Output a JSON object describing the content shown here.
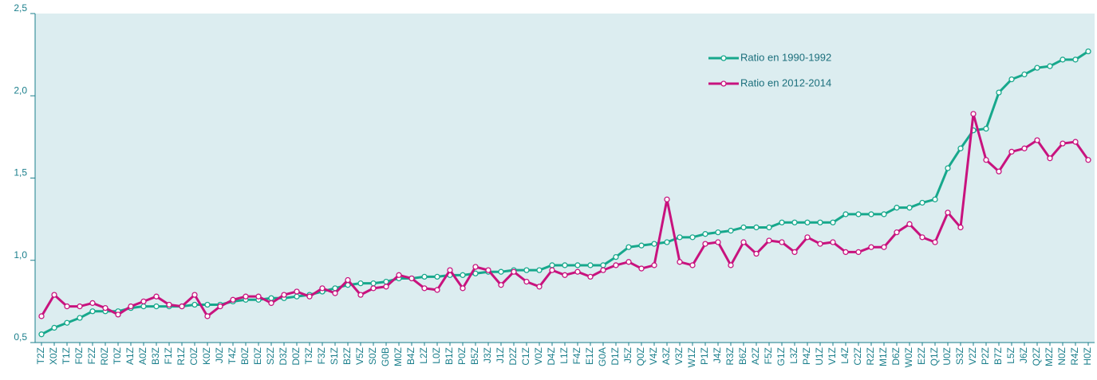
{
  "chart_data": {
    "type": "line",
    "categories": [
      "T2Z",
      "X0Z",
      "T1Z",
      "F0Z",
      "F2Z",
      "R0Z",
      "T0Z",
      "A1Z",
      "A0Z",
      "B3Z",
      "F1Z",
      "R1Z",
      "C0Z",
      "K0Z",
      "J0Z",
      "T4Z",
      "B0Z",
      "E0Z",
      "S2Z",
      "D3Z",
      "D0Z",
      "T3Z",
      "F3Z",
      "S1Z",
      "B2Z",
      "V5Z",
      "S0Z",
      "G0B",
      "M0Z",
      "B4Z",
      "L2Z",
      "L0Z",
      "B1Z",
      "P0Z",
      "B5Z",
      "J3Z",
      "J1Z",
      "D2Z",
      "C1Z",
      "V0Z",
      "D4Z",
      "L1Z",
      "F4Z",
      "E1Z",
      "G0A",
      "D1Z",
      "J5Z",
      "Q0Z",
      "V4Z",
      "A3Z",
      "V3Z",
      "W1Z",
      "P1Z",
      "J4Z",
      "R3Z",
      "B6Z",
      "A2Z",
      "F5Z",
      "G1Z",
      "L3Z",
      "P4Z",
      "U1Z",
      "V1Z",
      "L4Z",
      "C2Z",
      "R2Z",
      "M1Z",
      "D6Z",
      "W0Z",
      "E2Z",
      "Q1Z",
      "U0Z",
      "S3Z",
      "V2Z",
      "P2Z",
      "B7Z",
      "L5Z",
      "J6Z",
      "Q2Z",
      "M2Z",
      "N0Z",
      "R4Z",
      "H0Z"
    ],
    "series": [
      {
        "name": "Ratio en 1990-1992",
        "color": "#17a88c",
        "values": [
          0.55,
          0.59,
          0.62,
          0.65,
          0.69,
          0.69,
          0.69,
          0.71,
          0.72,
          0.72,
          0.72,
          0.72,
          0.73,
          0.73,
          0.73,
          0.75,
          0.76,
          0.76,
          0.77,
          0.77,
          0.78,
          0.79,
          0.81,
          0.83,
          0.85,
          0.86,
          0.86,
          0.87,
          0.89,
          0.89,
          0.9,
          0.9,
          0.91,
          0.91,
          0.92,
          0.93,
          0.93,
          0.94,
          0.94,
          0.94,
          0.97,
          0.97,
          0.97,
          0.97,
          0.97,
          1.02,
          1.08,
          1.09,
          1.1,
          1.11,
          1.14,
          1.14,
          1.16,
          1.17,
          1.18,
          1.2,
          1.2,
          1.2,
          1.23,
          1.23,
          1.23,
          1.23,
          1.23,
          1.28,
          1.28,
          1.28,
          1.28,
          1.32,
          1.32,
          1.35,
          1.37,
          1.56,
          1.68,
          1.79,
          1.8,
          2.02,
          2.1,
          2.13,
          2.17,
          2.18,
          2.22,
          2.22,
          2.27
        ]
      },
      {
        "name": "Ratio en 2012-2014",
        "color": "#c8137e",
        "values": [
          0.66,
          0.79,
          0.72,
          0.72,
          0.74,
          0.71,
          0.67,
          0.72,
          0.75,
          0.78,
          0.73,
          0.72,
          0.79,
          0.66,
          0.72,
          0.76,
          0.78,
          0.78,
          0.74,
          0.79,
          0.81,
          0.78,
          0.83,
          0.8,
          0.88,
          0.79,
          0.83,
          0.84,
          0.91,
          0.89,
          0.83,
          0.82,
          0.94,
          0.83,
          0.96,
          0.94,
          0.85,
          0.93,
          0.87,
          0.84,
          0.94,
          0.91,
          0.93,
          0.9,
          0.94,
          0.97,
          0.99,
          0.95,
          0.97,
          1.37,
          0.99,
          0.97,
          1.1,
          1.11,
          0.97,
          1.11,
          1.04,
          1.12,
          1.11,
          1.05,
          1.14,
          1.1,
          1.11,
          1.05,
          1.05,
          1.08,
          1.08,
          1.17,
          1.22,
          1.14,
          1.11,
          1.29,
          1.2,
          1.89,
          1.61,
          1.54,
          1.66,
          1.68,
          1.73,
          1.62,
          1.71,
          1.72,
          1.61
        ]
      }
    ],
    "ylim": [
      0.5,
      2.5
    ],
    "yticks": [
      {
        "value": 0.5,
        "label": "0,5"
      },
      {
        "value": 1.0,
        "label": "1,0"
      },
      {
        "value": 1.5,
        "label": "1,5"
      },
      {
        "value": 2.0,
        "label": "2,0"
      },
      {
        "value": 2.5,
        "label": "2,5"
      }
    ],
    "grid": false,
    "legend": "upper right",
    "background": "#dcedf0"
  }
}
